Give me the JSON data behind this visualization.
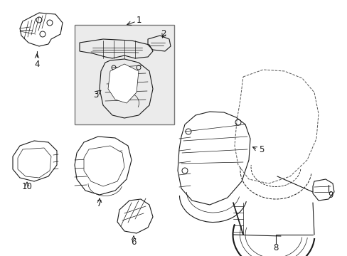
{
  "bg_color": "#ffffff",
  "line_color": "#1a1a1a",
  "box_fill": "#ebebeb",
  "box_edge": "#888888",
  "figsize": [
    4.89,
    3.6
  ],
  "dpi": 100,
  "xlim": [
    0,
    489
  ],
  "ylim": [
    0,
    360
  ]
}
